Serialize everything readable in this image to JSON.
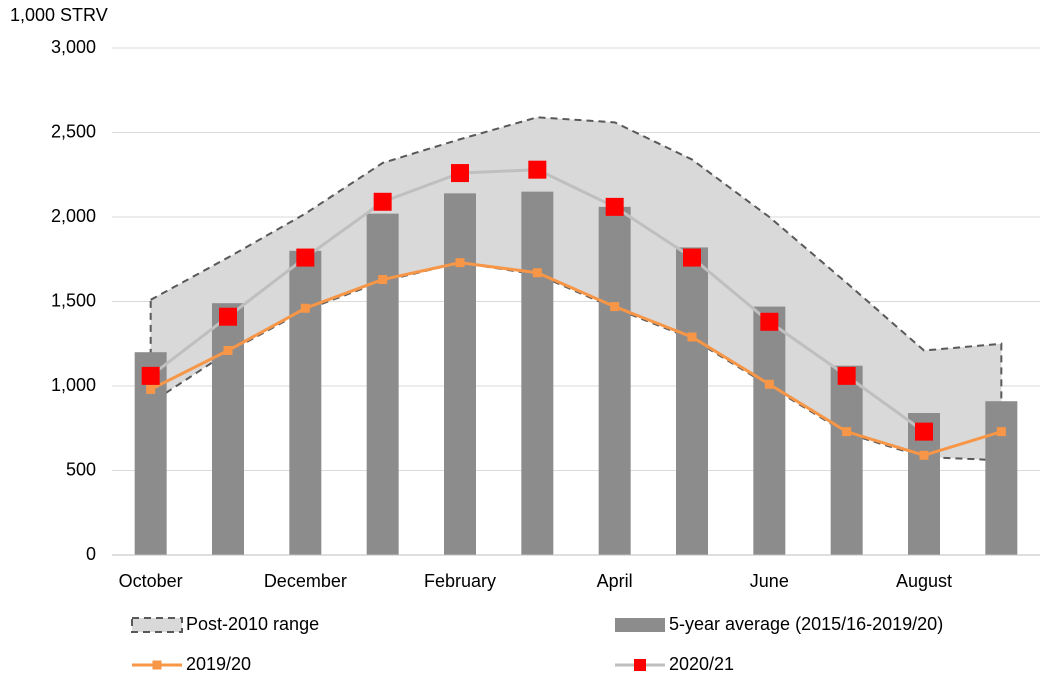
{
  "chart_data": {
    "type": "combo",
    "y_label": "1,000 STRV",
    "categories": [
      "October",
      null,
      "December",
      null,
      "February",
      null,
      "April",
      null,
      "June",
      null,
      "August",
      null
    ],
    "ylim": [
      0,
      3000
    ],
    "yticks": [
      0,
      500,
      {
        "value": 1000,
        "label": "1,000"
      },
      {
        "value": 1500,
        "label": "1,500"
      },
      {
        "value": 2000,
        "label": "2,000"
      },
      {
        "value": 2500,
        "label": "2,500"
      },
      {
        "value": 3000,
        "label": "3,000"
      }
    ],
    "grid": true,
    "series": [
      {
        "name": "Post-2010 range",
        "type": "range",
        "color": "#d9d9d9",
        "high": [
          1510,
          1760,
          2020,
          2320,
          2460,
          2590,
          2560,
          2340,
          2000,
          1610,
          1210,
          1250
        ],
        "low": [
          900,
          1200,
          1450,
          1620,
          1730,
          1660,
          1460,
          1280,
          1000,
          720,
          580,
          560
        ]
      },
      {
        "name": "5-year average (2015/16-2019/20)",
        "type": "bar",
        "color": "#8c8c8c",
        "values": [
          1200,
          1490,
          1800,
          2020,
          2140,
          2150,
          2060,
          1820,
          1470,
          1120,
          840,
          910
        ]
      },
      {
        "name": "2019/20",
        "type": "line",
        "color": "#f79646",
        "marker_color": "#f79646",
        "values": [
          980,
          1210,
          1460,
          1630,
          1730,
          1670,
          1470,
          1290,
          1010,
          730,
          590,
          730
        ]
      },
      {
        "name": "2020/21",
        "type": "line",
        "color": "#bfbfbf",
        "marker_color": "#ff0000",
        "values": [
          1060,
          1410,
          1760,
          2090,
          2260,
          2280,
          2060,
          1760,
          1380,
          1060,
          730,
          null
        ]
      }
    ]
  }
}
